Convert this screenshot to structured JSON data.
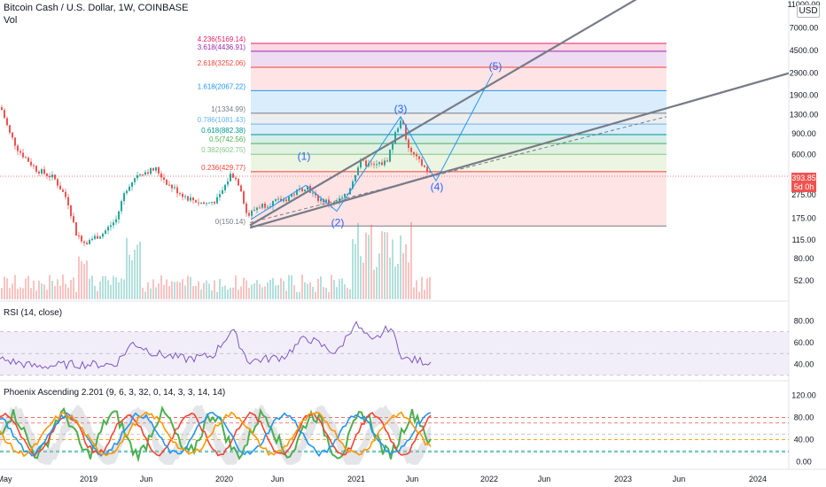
{
  "header": {
    "title": "Bitcoin Cash / U.S. Dollar, 1W, COINBASE",
    "vol_label": "Vol",
    "currency": "USD"
  },
  "price_tag": {
    "price": "393.85",
    "countdown": "5d 0h"
  },
  "rsi": {
    "title": "RSI (14, close)"
  },
  "phoenix": {
    "title": "Phoenix Ascending 2.201 (9, 6, 3, 32, 0, 14, 3, 3, 14, 14)"
  },
  "colors": {
    "up": "#26a69a",
    "down": "#ef5350",
    "trend": "#787b86",
    "wave": "#2196f3",
    "rsi": "#7e57c2",
    "rsi_band": "#ede7f6"
  },
  "chart_data": [
    {
      "type": "candlestick",
      "title": "Bitcoin Cash / U.S. Dollar, 1W, COINBASE",
      "scale": "log",
      "ylim": [
        45,
        11000
      ],
      "y_ticks": [
        "11000.00",
        "7000.00",
        "4500.00",
        "2900.00",
        "1900.00",
        "1300.00",
        "900.00",
        "600.00",
        "393.85",
        "275.00",
        "175.00",
        "115.00",
        "80.00",
        "52.00"
      ],
      "x_ticks": [
        "May",
        "2019",
        "Jun",
        "2020",
        "Jun",
        "2021",
        "Jun",
        "2022",
        "Jun",
        "2023",
        "Jun",
        "2024"
      ],
      "last_price": 393.85,
      "fib_levels": [
        {
          "label": "4.236(5169.14)",
          "value": 5169.14,
          "color": "#e91e63"
        },
        {
          "label": "3.618(4436.91)",
          "value": 4436.91,
          "color": "#9c27b0"
        },
        {
          "label": "2.618(3252.06)",
          "value": 3252.06,
          "color": "#f44336"
        },
        {
          "label": "1.618(2067.22)",
          "value": 2067.22,
          "color": "#2196f3"
        },
        {
          "label": "1(1334.99)",
          "value": 1334.99,
          "color": "#787b86"
        },
        {
          "label": "0.786(1081.43)",
          "value": 1081.43,
          "color": "#64b5f6"
        },
        {
          "label": "0.618(882.38)",
          "value": 882.38,
          "color": "#009688"
        },
        {
          "label": "0.5(742.56)",
          "value": 742.56,
          "color": "#4caf50"
        },
        {
          "label": "0.382(602.75)",
          "value": 602.75,
          "color": "#81c784"
        },
        {
          "label": "0.236(429.77)",
          "value": 429.77,
          "color": "#f44336"
        },
        {
          "label": "0(150.14)",
          "value": 150.14,
          "color": "#787b86"
        }
      ],
      "waves": [
        "(1)",
        "(2)",
        "(3)",
        "(4)",
        "(5)"
      ]
    },
    {
      "type": "line",
      "title": "RSI (14, close)",
      "ylim": [
        25,
        90
      ],
      "y_ticks": [
        "80.00",
        "60.00",
        "40.00"
      ],
      "bands": [
        70,
        50,
        30
      ]
    },
    {
      "type": "line",
      "title": "Phoenix Ascending 2.201 (9, 6, 3, 32, 0, 14, 3, 3, 14, 14)",
      "ylim": [
        -10,
        130
      ],
      "y_ticks": [
        "120.00",
        "80.00",
        "40.00",
        "0.00"
      ],
      "series": [
        {
          "color": "#4caf50"
        },
        {
          "color": "#f44336"
        },
        {
          "color": "#2196f3"
        },
        {
          "color": "#ff9800"
        }
      ]
    }
  ]
}
